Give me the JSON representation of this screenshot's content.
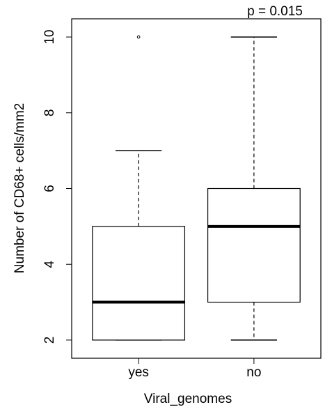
{
  "chart_data": {
    "type": "box",
    "annotation": "p = 0.015",
    "x_label": "Viral_genomes",
    "y_label": "Number of CD68+ cells/mm2",
    "categories": [
      "yes",
      "no"
    ],
    "boxes": [
      {
        "min": 2,
        "q1": 2,
        "median": 3,
        "q3": 5,
        "max": 7,
        "outliers": [
          10
        ]
      },
      {
        "min": 2,
        "q1": 3,
        "median": 5,
        "q3": 6,
        "max": 10,
        "outliers": []
      }
    ],
    "color": "#000000",
    "ylim": [
      1.52,
      10.48
    ],
    "yticks": [
      2,
      4,
      6,
      8,
      10
    ]
  }
}
